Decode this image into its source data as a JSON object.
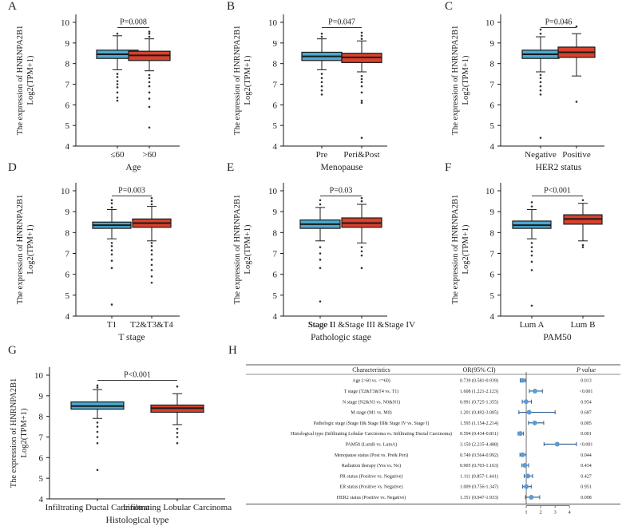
{
  "colors": {
    "blue": "#4BA9D0",
    "red": "#D9412C",
    "line": "#1a1a1a",
    "dot": "#5B9BD5"
  },
  "y_axis_label_line1": "The expression of HNRNPA2B1",
  "y_axis_label_line2": "Log2(TPM+1)",
  "chart_data": [
    {
      "panel": "A",
      "type": "boxplot",
      "xlabel": "Age",
      "ylim": [
        4,
        10
      ],
      "yticks": [
        "4",
        "5",
        "6",
        "7",
        "8",
        "9",
        "10"
      ],
      "pvalue": "P=0.008",
      "groups": [
        {
          "label": "≤60",
          "color": "#4BA9D0",
          "min": 7.7,
          "q1": 8.25,
          "median": 8.45,
          "q3": 8.65,
          "max": 9.35,
          "outliers": [
            6.2,
            6.35,
            6.6,
            6.85,
            7.0,
            7.15,
            7.35,
            7.5,
            9.45
          ]
        },
        {
          "label": ">60",
          "color": "#D9412C",
          "min": 7.65,
          "q1": 8.15,
          "median": 8.4,
          "q3": 8.6,
          "max": 9.2,
          "outliers": [
            4.9,
            5.9,
            6.3,
            6.6,
            6.9,
            7.1,
            7.3,
            7.45,
            9.3,
            9.45,
            9.55
          ]
        }
      ]
    },
    {
      "panel": "B",
      "type": "boxplot",
      "xlabel": "Menopause",
      "ylim": [
        4,
        10
      ],
      "yticks": [
        "4",
        "5",
        "6",
        "7",
        "8",
        "9",
        "10"
      ],
      "pvalue": "P=0.047",
      "groups": [
        {
          "label": "Pre",
          "color": "#4BA9D0",
          "min": 7.7,
          "q1": 8.15,
          "median": 8.35,
          "q3": 8.55,
          "max": 9.2,
          "outliers": [
            6.5,
            6.7,
            6.9,
            7.1,
            7.3,
            7.5,
            9.3,
            9.45
          ]
        },
        {
          "label": "Peri&Post",
          "color": "#D9412C",
          "min": 7.6,
          "q1": 8.05,
          "median": 8.3,
          "q3": 8.5,
          "max": 9.1,
          "outliers": [
            4.4,
            6.1,
            6.2,
            6.6,
            6.9,
            7.1,
            7.25,
            7.4,
            9.2,
            9.35,
            9.5
          ]
        }
      ]
    },
    {
      "panel": "C",
      "type": "boxplot",
      "xlabel": "HER2 status",
      "ylim": [
        4,
        10
      ],
      "yticks": [
        "4",
        "5",
        "6",
        "7",
        "8",
        "9",
        "10"
      ],
      "pvalue": "P=0.046",
      "groups": [
        {
          "label": "Negative",
          "color": "#4BA9D0",
          "min": 7.6,
          "q1": 8.25,
          "median": 8.45,
          "q3": 8.65,
          "max": 9.3,
          "outliers": [
            4.4,
            6.5,
            6.7,
            6.9,
            7.1,
            7.3,
            7.45,
            9.45,
            9.65
          ]
        },
        {
          "label": "Positive",
          "color": "#D9412C",
          "min": 7.4,
          "q1": 8.3,
          "median": 8.55,
          "q3": 8.8,
          "max": 9.45,
          "outliers": [
            6.15,
            9.8
          ]
        }
      ]
    },
    {
      "panel": "D",
      "type": "boxplot",
      "xlabel": "T stage",
      "ylim": [
        4,
        10
      ],
      "yticks": [
        "4",
        "5",
        "6",
        "7",
        "8",
        "9",
        "10"
      ],
      "pvalue": "P=0.003",
      "groups": [
        {
          "label": "T1",
          "color": "#4BA9D0",
          "min": 7.7,
          "q1": 8.2,
          "median": 8.35,
          "q3": 8.5,
          "max": 9.1,
          "outliers": [
            4.55,
            6.3,
            6.65,
            6.95,
            7.15,
            7.35,
            7.5,
            9.2,
            9.4,
            9.55
          ]
        },
        {
          "label": "T2&T3&T4",
          "color": "#D9412C",
          "min": 7.6,
          "q1": 8.25,
          "median": 8.45,
          "q3": 8.65,
          "max": 9.25,
          "outliers": [
            5.6,
            5.9,
            6.2,
            6.45,
            6.7,
            6.95,
            7.15,
            7.35,
            7.5,
            9.35,
            9.5,
            9.65
          ]
        }
      ]
    },
    {
      "panel": "E",
      "type": "boxplot",
      "xlabel": "Pathologic  stage",
      "ylim": [
        4,
        10
      ],
      "yticks": [
        "4",
        "5",
        "6",
        "7",
        "8",
        "9",
        "10"
      ],
      "pvalue": "P=0.03",
      "groups": [
        {
          "label": "Stage I",
          "color": "#4BA9D0",
          "min": 7.6,
          "q1": 8.2,
          "median": 8.4,
          "q3": 8.6,
          "max": 9.2,
          "outliers": [
            4.7,
            6.3,
            6.7,
            7.0,
            7.3,
            9.35,
            9.55
          ]
        },
        {
          "label": "Stage II &Stage III &Stage IV",
          "color": "#D9412C",
          "min": 7.5,
          "q1": 8.25,
          "median": 8.45,
          "q3": 8.7,
          "max": 9.35,
          "outliers": [
            6.3,
            6.9,
            7.1,
            7.3,
            9.5,
            9.65
          ]
        }
      ]
    },
    {
      "panel": "F",
      "type": "boxplot",
      "xlabel": "PAM50",
      "ylim": [
        4,
        10
      ],
      "yticks": [
        "4",
        "5",
        "6",
        "7",
        "8",
        "9",
        "10"
      ],
      "pvalue": "P<0.001",
      "groups": [
        {
          "label": "Lum A",
          "color": "#4BA9D0",
          "min": 7.7,
          "q1": 8.2,
          "median": 8.35,
          "q3": 8.55,
          "max": 9.1,
          "outliers": [
            4.5,
            6.2,
            6.6,
            6.9,
            7.1,
            7.3,
            7.5,
            9.25,
            9.45
          ]
        },
        {
          "label": "Lum B",
          "color": "#D9412C",
          "min": 7.6,
          "q1": 8.4,
          "median": 8.65,
          "q3": 8.85,
          "max": 9.4,
          "outliers": [
            7.3,
            7.4,
            9.55
          ]
        }
      ]
    },
    {
      "panel": "G",
      "type": "boxplot",
      "xlabel": "Histological type",
      "ylim": [
        4,
        10
      ],
      "yticks": [
        "4",
        "5",
        "6",
        "7",
        "8",
        "9",
        "10"
      ],
      "pvalue": "P<0.001",
      "groups": [
        {
          "label": "Infiltrating Ductal Carcinoma",
          "color": "#4BA9D0",
          "min": 7.9,
          "q1": 8.35,
          "median": 8.5,
          "q3": 8.7,
          "max": 9.3,
          "outliers": [
            5.4,
            6.7,
            7.0,
            7.25,
            7.5,
            7.7,
            9.4,
            9.5
          ]
        },
        {
          "label": "Infiltrating Lobular Carcinoma",
          "color": "#D9412C",
          "min": 7.6,
          "q1": 8.2,
          "median": 8.4,
          "q3": 8.55,
          "max": 9.1,
          "outliers": [
            6.7,
            7.0,
            7.2,
            7.4,
            9.45
          ]
        }
      ]
    },
    {
      "panel": "H",
      "type": "forest",
      "headers": {
        "characteristics": "Characteristics",
        "or": "OR(95% CI)",
        "p": "P value"
      },
      "xticks": [
        1,
        2,
        3,
        4
      ],
      "xlim": [
        0.5,
        4.6
      ],
      "rows": [
        {
          "char": "Age (>60 vs. <=60)",
          "or_text": "0.739 (0.581-0.939)",
          "p": "0.013",
          "or": 0.739,
          "lo": 0.581,
          "hi": 0.939
        },
        {
          "char": "T stage (T2&T3&T4 vs. T1)",
          "or_text": "1.608 (1.221-2.123)",
          "p": "<0.001",
          "or": 1.608,
          "lo": 1.221,
          "hi": 2.123
        },
        {
          "char": "N stage (N2&N3 vs. N0&N1)",
          "or_text": "0.991 (0.725-1.355)",
          "p": "0.954",
          "or": 0.991,
          "lo": 0.725,
          "hi": 1.355
        },
        {
          "char": "M stage (M1 vs. M0)",
          "or_text": "1.201 (0.492-3.005)",
          "p": "0.687",
          "or": 1.201,
          "lo": 0.492,
          "hi": 3.005
        },
        {
          "char": "Pathologic stage (Stage II& Stage III& Stage IV vs. Stage I)",
          "or_text": "1.595 (1.154-2.214)",
          "p": "0.005",
          "or": 1.595,
          "lo": 1.154,
          "hi": 2.214
        },
        {
          "char": "Histological type (Infiltrating Lobular Carcinoma vs. Infiltrating Ductal Carcinoma)",
          "or_text": "0.594 (0.434-0.811)",
          "p": "0.001",
          "or": 0.594,
          "lo": 0.434,
          "hi": 0.811
        },
        {
          "char": "PAM50 (LumB vs. LumA)",
          "or_text": "3.150 (2.235-4.488)",
          "p": "<0.001",
          "or": 3.15,
          "lo": 2.235,
          "hi": 4.488
        },
        {
          "char": "Menopause status (Post vs. Pre& Peri)",
          "or_text": "0.749 (0.564-0.992)",
          "p": "0.044",
          "or": 0.749,
          "lo": 0.564,
          "hi": 0.992
        },
        {
          "char": "Radiation therapy (Yes vs. No)",
          "or_text": "0.905 (0.703-1.163)",
          "p": "0.434",
          "or": 0.905,
          "lo": 0.703,
          "hi": 1.163
        },
        {
          "char": "PR status (Positive vs. Negative)",
          "or_text": "1.111 (0.857-1.441)",
          "p": "0.427",
          "or": 1.111,
          "lo": 0.857,
          "hi": 1.441
        },
        {
          "char": "ER status (Positive vs. Negative)",
          "or_text": "1.009 (0.756-1.347)",
          "p": "0.951",
          "or": 1.009,
          "lo": 0.756,
          "hi": 1.347
        },
        {
          "char": "HER2 status (Positive vs. Negative)",
          "or_text": "1.351 (0.947-1.933)",
          "p": "0.098",
          "or": 1.351,
          "lo": 0.947,
          "hi": 1.933
        }
      ]
    }
  ]
}
